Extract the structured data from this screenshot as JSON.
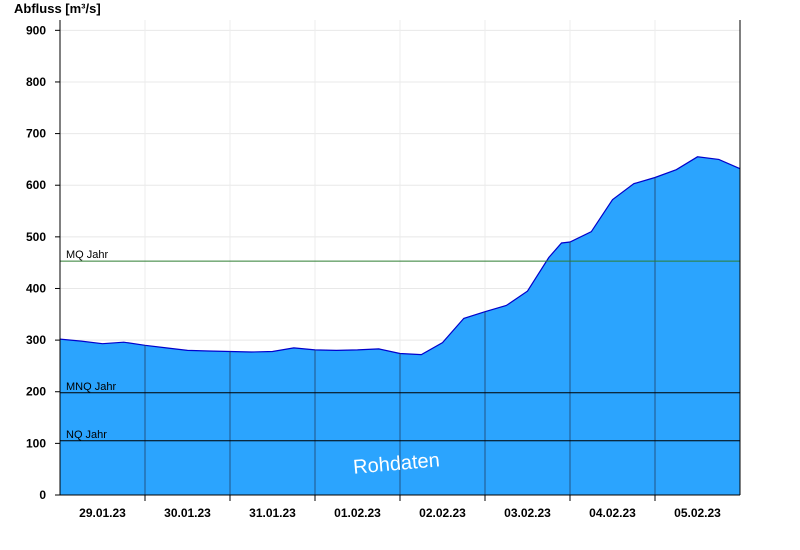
{
  "chart_data": {
    "type": "area",
    "title": "",
    "ylabel": "Abfluss [m³/s]",
    "xlabel": "",
    "ylim": [
      0,
      920
    ],
    "yticks": [
      0,
      100,
      200,
      300,
      400,
      500,
      600,
      700,
      800,
      900
    ],
    "x_range_days": [
      0,
      8
    ],
    "x_tick_labels": [
      "29.01.23",
      "30.01.23",
      "31.01.23",
      "01.02.23",
      "02.02.23",
      "03.02.23",
      "04.02.23",
      "05.02.23"
    ],
    "grid": true,
    "colors": {
      "area": "#2ba4fe",
      "line": "#0000cc",
      "mq_line": "#2e7d32",
      "ref_line": "#000000"
    },
    "reference_lines": [
      {
        "label": "MQ Jahr",
        "value": 453
      },
      {
        "label": "MNQ Jahr",
        "value": 198
      },
      {
        "label": "NQ Jahr",
        "value": 105
      }
    ],
    "series": [
      {
        "x": [
          0,
          0.25,
          0.5,
          0.75,
          1.0,
          1.25,
          1.5,
          1.75,
          2.0,
          2.25,
          2.5,
          2.75,
          3.0,
          3.25,
          3.5,
          3.75,
          4.0,
          4.25,
          4.5,
          4.75,
          5.0,
          5.25,
          5.5,
          5.75,
          5.9,
          6.0,
          6.25,
          6.5,
          6.75,
          7.0,
          7.25,
          7.5,
          7.75,
          8.0
        ],
        "y": [
          302,
          298,
          293,
          296,
          290,
          285,
          280,
          279,
          278,
          277,
          278,
          285,
          281,
          280,
          281,
          283,
          274,
          272,
          295,
          342,
          355,
          367,
          395,
          460,
          488,
          490,
          510,
          572,
          603,
          615,
          630,
          655,
          650,
          632
        ]
      }
    ],
    "watermark": "Rohdaten"
  }
}
